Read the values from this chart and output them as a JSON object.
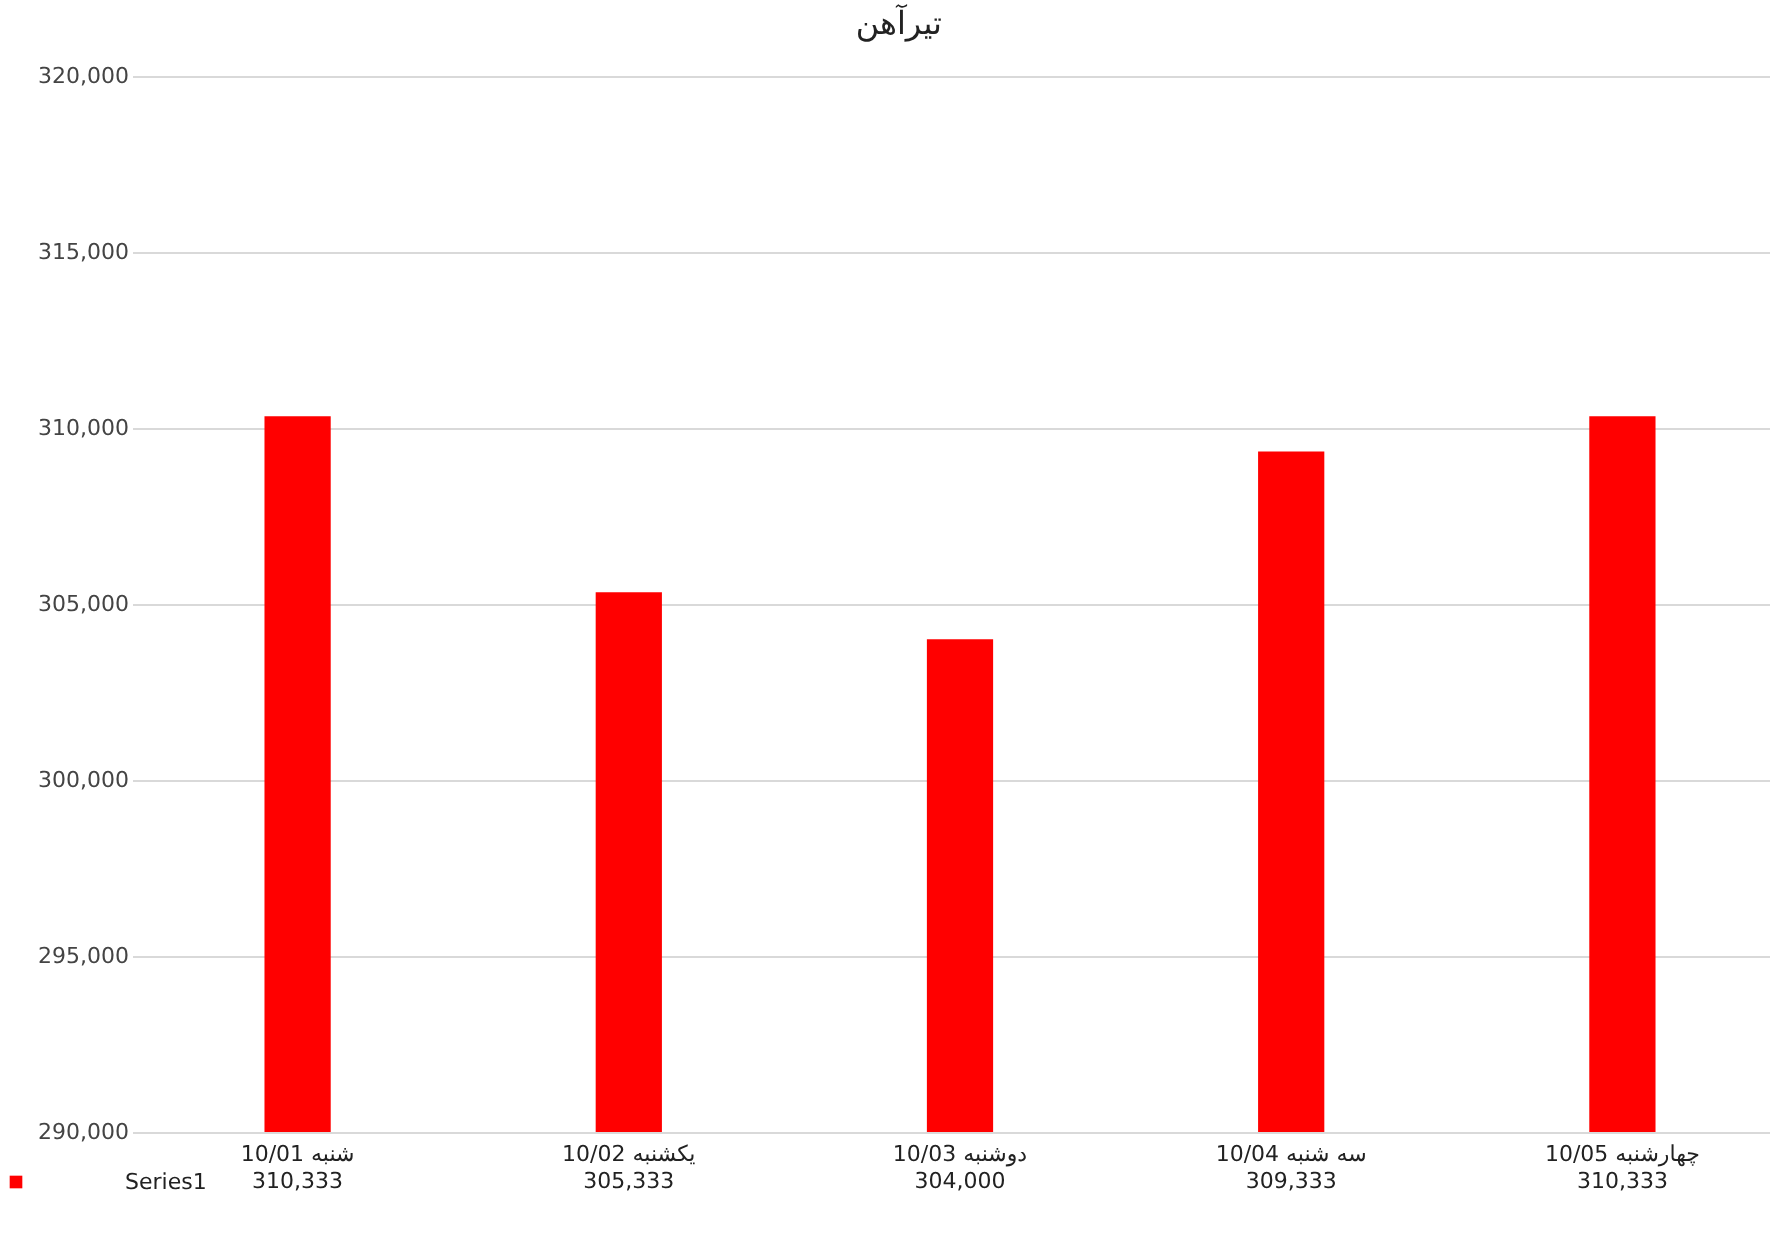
{
  "chart_data": {
    "type": "bar",
    "title": "تیرآهن",
    "categories": [
      "10/01 شنبه",
      "10/02 یکشنبه",
      "10/03 دوشنبه",
      "10/04 سه شنبه",
      "10/05 چهارشنبه"
    ],
    "series": [
      {
        "name": "Series1",
        "color": "#ff0000",
        "values": [
          310333,
          305333,
          304000,
          309333,
          310333
        ],
        "value_labels": [
          "310,333",
          "305,333",
          "304,000",
          "309,333",
          "310,333"
        ]
      }
    ],
    "ylim": [
      290000,
      320000
    ],
    "yticks": [
      {
        "value": 290000,
        "label": "290,000"
      },
      {
        "value": 295000,
        "label": "295,000"
      },
      {
        "value": 300000,
        "label": "300,000"
      },
      {
        "value": 305000,
        "label": "305,000"
      },
      {
        "value": 310000,
        "label": "310,000"
      },
      {
        "value": 315000,
        "label": "315,000"
      },
      {
        "value": 320000,
        "label": "320,000"
      }
    ],
    "grid": "y",
    "legend": "bottom left"
  }
}
